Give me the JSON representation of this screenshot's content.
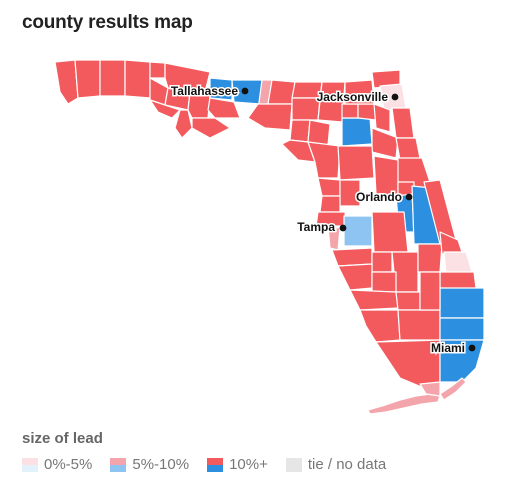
{
  "title": "county results map",
  "colors": {
    "red_strong": "#f25a5d",
    "red_light": "#f4a5ab",
    "red_faint": "#fbe0e4",
    "blue_strong": "#2d8fdf",
    "blue_light": "#8ec4f2",
    "tie": "#e6e6e6",
    "border": "#ffffff"
  },
  "cities": [
    {
      "name": "Tallahassee"
    },
    {
      "name": "Jacksonville"
    },
    {
      "name": "Orlando"
    },
    {
      "name": "Tampa"
    },
    {
      "name": "Miami"
    }
  ],
  "legend": {
    "title": "size of lead",
    "items": [
      {
        "label": "0%-5%",
        "top": "#fbe0e4",
        "bottom": "#e3f1fb"
      },
      {
        "label": "5%-10%",
        "top": "#f4a5ab",
        "bottom": "#8ec4f2"
      },
      {
        "label": "10%+",
        "top": "#f25a5d",
        "bottom": "#2d8fdf"
      },
      {
        "label": "tie / no data",
        "top": "#e6e6e6",
        "bottom": "#e6e6e6"
      }
    ]
  }
}
